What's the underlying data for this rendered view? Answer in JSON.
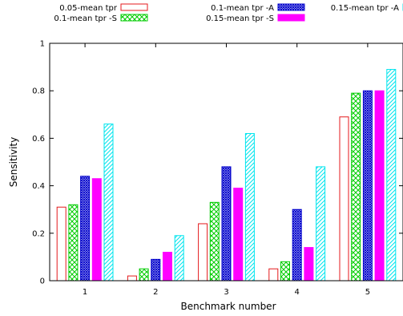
{
  "chart_data": {
    "type": "bar",
    "xlabel": "Benchmark number",
    "ylabel": "Sensitivity",
    "categories": [
      "1",
      "2",
      "3",
      "4",
      "5"
    ],
    "ylim": [
      0,
      1
    ],
    "yticks": [
      "0",
      "0.2",
      "0.4",
      "0.6",
      "0.8",
      "1"
    ],
    "legend_placement": "top",
    "series": [
      {
        "name": "0.05-mean tpr",
        "values": [
          0.31,
          0.02,
          0.24,
          0.05,
          0.69
        ],
        "color": "#e41a1c",
        "pattern": "empty"
      },
      {
        "name": "0.1-mean tpr -S",
        "values": [
          0.32,
          0.05,
          0.33,
          0.08,
          0.79
        ],
        "color": "#00cc00",
        "pattern": "crosshatch"
      },
      {
        "name": "0.1-mean tpr -A",
        "values": [
          0.44,
          0.09,
          0.48,
          0.3,
          0.8
        ],
        "color": "#0000cc",
        "pattern": "dense-crosshatch"
      },
      {
        "name": "0.15-mean tpr -S",
        "values": [
          0.43,
          0.12,
          0.39,
          0.14,
          0.8
        ],
        "color": "#ff00ff",
        "pattern": "solid"
      },
      {
        "name": "0.15-mean tpr -A",
        "values": [
          0.66,
          0.19,
          0.62,
          0.48,
          0.89
        ],
        "color": "#00e5ee",
        "pattern": "diagonal"
      }
    ]
  }
}
